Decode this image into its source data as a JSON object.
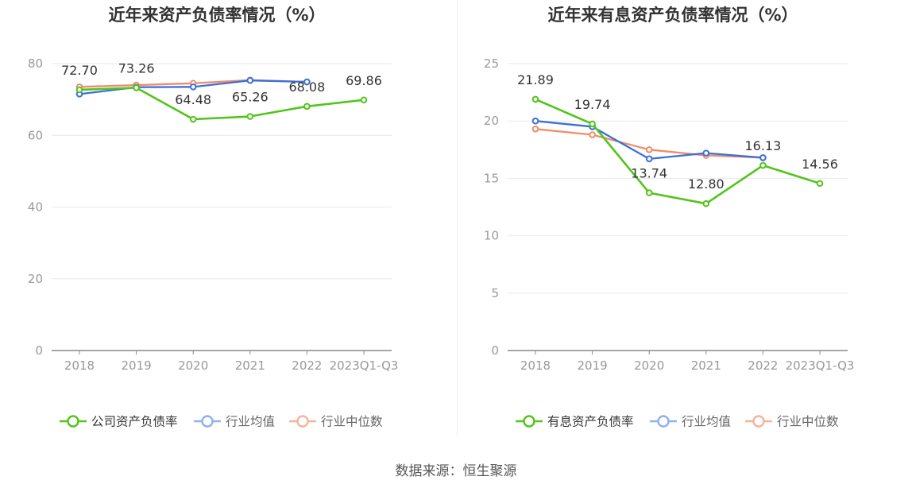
{
  "source_text": "数据来源：恒生聚源",
  "chart_data": [
    {
      "type": "line",
      "title": "近年来资产负债率情况（%）",
      "categories": [
        "2018",
        "2019",
        "2020",
        "2021",
        "2022",
        "2023Q1-Q3"
      ],
      "ylim": [
        0,
        80
      ],
      "yticks": [
        0,
        20,
        40,
        60,
        80
      ],
      "series": [
        {
          "name": "公司资产负债率",
          "color": "#52c41a",
          "values": [
            72.7,
            73.26,
            64.48,
            65.26,
            68.08,
            69.86
          ],
          "labels": [
            "72.70",
            "73.26",
            "64.48",
            "65.26",
            "68.08",
            "69.86"
          ]
        },
        {
          "name": "行业均值",
          "color": "#3b6fd8",
          "legend_color": "#8fb0ee",
          "values": [
            71.5,
            73.4,
            73.5,
            75.3,
            74.9,
            null
          ]
        },
        {
          "name": "行业中位数",
          "color": "#f08c6a",
          "legend_color": "#f5b39b",
          "values": [
            73.5,
            74.0,
            74.5,
            75.4,
            74.9,
            null
          ]
        }
      ]
    },
    {
      "type": "line",
      "title": "近年来有息资产负债率情况（%）",
      "categories": [
        "2018",
        "2019",
        "2020",
        "2021",
        "2022",
        "2023Q1-Q3"
      ],
      "ylim": [
        0,
        25
      ],
      "yticks": [
        0,
        5,
        10,
        15,
        20,
        25
      ],
      "series": [
        {
          "name": "有息资产负债率",
          "color": "#52c41a",
          "values": [
            21.89,
            19.74,
            13.74,
            12.8,
            16.13,
            14.56
          ],
          "labels": [
            "21.89",
            "19.74",
            "13.74",
            "12.80",
            "16.13",
            "14.56"
          ]
        },
        {
          "name": "行业均值",
          "color": "#3b6fd8",
          "legend_color": "#8fb0ee",
          "values": [
            20.0,
            19.5,
            16.7,
            17.2,
            16.8,
            null
          ]
        },
        {
          "name": "行业中位数",
          "color": "#f08c6a",
          "legend_color": "#f5b39b",
          "values": [
            19.3,
            18.8,
            17.5,
            17.0,
            16.8,
            null
          ]
        }
      ]
    }
  ]
}
